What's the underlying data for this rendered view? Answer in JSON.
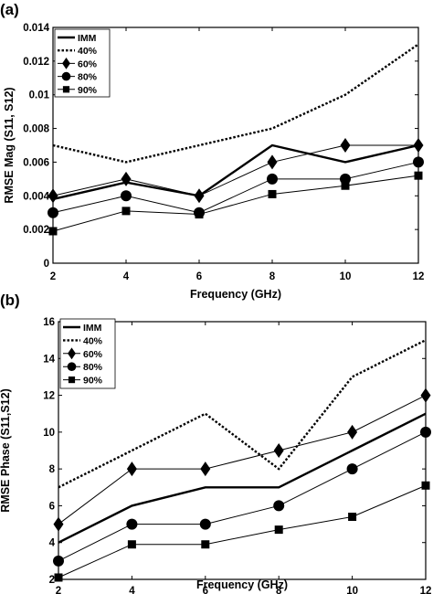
{
  "chart_data": [
    {
      "panel_label": "(a)",
      "type": "line",
      "xlabel": "Frequency (GHz)",
      "ylabel": "RMSE Mag (S11, S12)",
      "x": [
        2,
        4,
        6,
        8,
        10,
        12
      ],
      "xlim": [
        2,
        12
      ],
      "ylim": [
        0,
        0.014
      ],
      "xticks": [
        "2",
        "4",
        "6",
        "8",
        "10",
        "12"
      ],
      "yticks": [
        "0",
        "0.002",
        "0.004",
        "0.006",
        "0.008",
        "0.01",
        "0.012",
        "0.014"
      ],
      "grid": false,
      "legend_position": "top-left",
      "series": [
        {
          "name": "IMM",
          "style": "solid-thick",
          "marker": "none",
          "values": [
            0.0038,
            0.0048,
            0.004,
            0.007,
            0.006,
            0.007
          ]
        },
        {
          "name": "40%",
          "style": "dotted",
          "marker": "none",
          "values": [
            0.007,
            0.006,
            0.007,
            0.008,
            0.01,
            0.013
          ]
        },
        {
          "name": "60%",
          "style": "solid-thin",
          "marker": "diamond",
          "values": [
            0.004,
            0.005,
            0.004,
            0.006,
            0.007,
            0.007
          ]
        },
        {
          "name": "80%",
          "style": "solid-thin",
          "marker": "circle",
          "values": [
            0.003,
            0.004,
            0.003,
            0.005,
            0.005,
            0.006
          ]
        },
        {
          "name": "90%",
          "style": "solid-thin",
          "marker": "square",
          "values": [
            0.0019,
            0.0031,
            0.0029,
            0.0041,
            0.0046,
            0.0052
          ]
        }
      ]
    },
    {
      "panel_label": "(b)",
      "type": "line",
      "xlabel": "Frequency (GHz)",
      "ylabel": "RMSE Phase (S11,S12)",
      "x": [
        2,
        4,
        6,
        8,
        10,
        12
      ],
      "xlim": [
        2,
        12
      ],
      "ylim": [
        2,
        16
      ],
      "xticks": [
        "2",
        "4",
        "6",
        "8",
        "10",
        "12"
      ],
      "yticks": [
        "2",
        "4",
        "6",
        "8",
        "10",
        "12",
        "14",
        "16"
      ],
      "grid": false,
      "legend_position": "top-left",
      "series": [
        {
          "name": "IMM",
          "style": "solid-thick",
          "marker": "none",
          "values": [
            4,
            6,
            7,
            7,
            9,
            11
          ]
        },
        {
          "name": "40%",
          "style": "dotted",
          "marker": "none",
          "values": [
            7,
            9,
            11,
            8,
            13,
            15
          ]
        },
        {
          "name": "60%",
          "style": "solid-thin",
          "marker": "diamond",
          "values": [
            5,
            8,
            8,
            9,
            10,
            12
          ]
        },
        {
          "name": "80%",
          "style": "solid-thin",
          "marker": "circle",
          "values": [
            3,
            5,
            5,
            6,
            8,
            10
          ]
        },
        {
          "name": "90%",
          "style": "solid-thin",
          "marker": "square",
          "values": [
            2.1,
            3.9,
            3.9,
            4.7,
            5.4,
            7.1
          ]
        }
      ]
    }
  ]
}
